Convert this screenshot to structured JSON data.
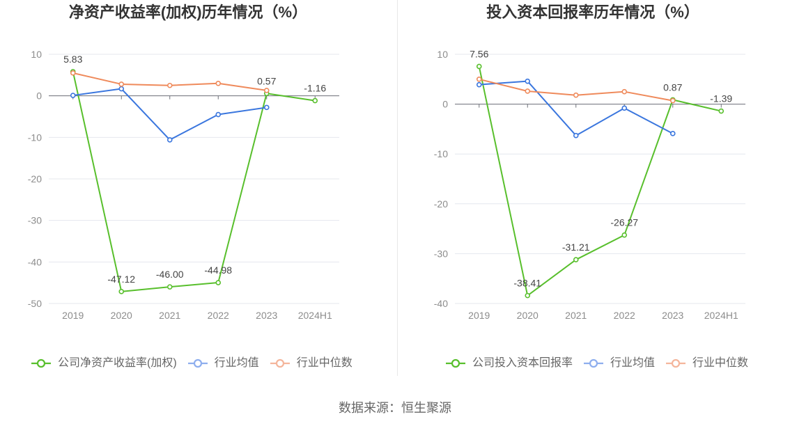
{
  "source": "数据来源：恒生聚源",
  "chart_data": [
    {
      "type": "line",
      "title": "净资产收益率(加权)历年情况（%）",
      "categories": [
        "2019",
        "2020",
        "2021",
        "2022",
        "2023",
        "2024H1"
      ],
      "ylim": [
        -50,
        10
      ],
      "yticks": [
        10,
        0,
        -10,
        -20,
        -30,
        -40,
        -50
      ],
      "legend_position": "bottom",
      "series": [
        {
          "name": "公司净资产收益率(加权)",
          "color": "#58bf2c",
          "legend_color": "#58bf2c",
          "values": [
            5.83,
            -47.12,
            -46.0,
            -44.98,
            0.57,
            -1.16
          ],
          "labels": [
            "5.83",
            "-47.12",
            "-46.00",
            "-44.98",
            "0.57",
            "-1.16"
          ]
        },
        {
          "name": "行业均值",
          "color": "#3a76de",
          "legend_color": "#8eaeee",
          "values": [
            0.1,
            1.7,
            -10.6,
            -4.5,
            -2.8,
            null
          ]
        },
        {
          "name": "行业中位数",
          "color": "#ef8a5b",
          "legend_color": "#f4b59b",
          "values": [
            5.5,
            2.8,
            2.5,
            3.0,
            1.3,
            null
          ]
        }
      ]
    },
    {
      "type": "line",
      "title": "投入资本回报率历年情况（%）",
      "categories": [
        "2019",
        "2020",
        "2021",
        "2022",
        "2023",
        "2024H1"
      ],
      "ylim": [
        -40,
        10
      ],
      "yticks": [
        10,
        0,
        -10,
        -20,
        -30,
        -40
      ],
      "legend_position": "bottom",
      "series": [
        {
          "name": "公司投入资本回报率",
          "color": "#58bf2c",
          "legend_color": "#58bf2c",
          "values": [
            7.56,
            -38.41,
            -31.21,
            -26.27,
            0.87,
            -1.39
          ],
          "labels": [
            "7.56",
            "-38.41",
            "-31.21",
            "-26.27",
            "0.87",
            "-1.39"
          ]
        },
        {
          "name": "行业均值",
          "color": "#3a76de",
          "legend_color": "#8eaeee",
          "values": [
            3.9,
            4.6,
            -6.3,
            -0.8,
            -5.9,
            null
          ]
        },
        {
          "name": "行业中位数",
          "color": "#ef8a5b",
          "legend_color": "#f4b59b",
          "values": [
            5.0,
            2.6,
            1.8,
            2.5,
            0.7,
            null
          ]
        }
      ]
    }
  ]
}
